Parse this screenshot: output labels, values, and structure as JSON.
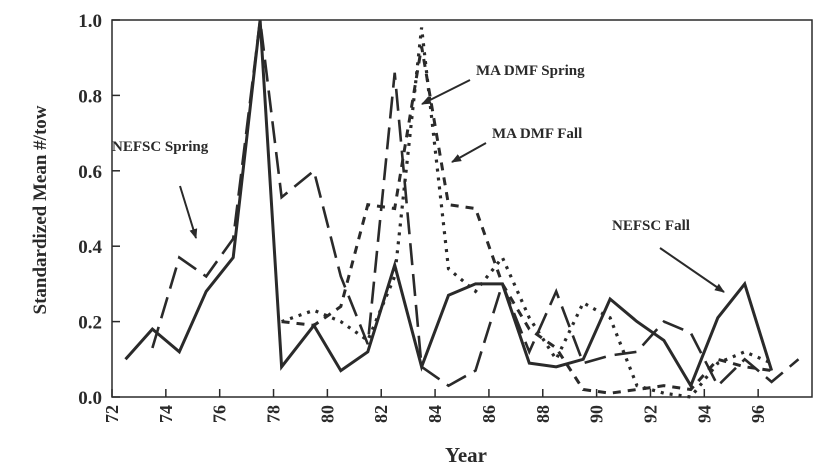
{
  "chart_data": {
    "type": "line",
    "title": "",
    "xlabel": "Year",
    "ylabel": "Standardized Mean #/tow",
    "xlim": [
      72,
      98
    ],
    "ylim": [
      0.0,
      1.0
    ],
    "x_ticks": [
      "72",
      "74",
      "76",
      "78",
      "80",
      "82",
      "84",
      "86",
      "88",
      "90",
      "92",
      "94",
      "96"
    ],
    "y_ticks": [
      "0.0",
      "0.2",
      "0.4",
      "0.6",
      "0.8",
      "1.0"
    ],
    "grid": false,
    "series": [
      {
        "name": "NEFSC Spring",
        "style": "solid",
        "x": [
          72.5,
          73.5,
          74,
          74.5,
          75.5,
          76.5,
          77.5,
          78.3,
          79.5,
          80.5,
          81.5,
          82.5,
          83.5,
          84.5,
          85.5,
          86.5,
          87.5,
          88.5,
          89.5,
          90.5,
          91.5,
          92.5,
          93.5,
          94.5,
          95.5,
          96.5
        ],
        "y": [
          0.1,
          0.18,
          0.15,
          0.12,
          0.28,
          0.37,
          1.0,
          0.08,
          0.19,
          0.07,
          0.12,
          0.35,
          0.08,
          0.27,
          0.3,
          0.3,
          0.09,
          0.08,
          0.1,
          0.26,
          0.2,
          0.15,
          0.03,
          0.21,
          0.3,
          0.07
        ]
      },
      {
        "name": "NEFSC Fall",
        "style": "long-dash",
        "x": [
          73.5,
          74.5,
          75.5,
          76.5,
          77.5,
          78.3,
          79.5,
          80.5,
          81.5,
          82.5,
          83.5,
          84.5,
          85.5,
          86.5,
          87.5,
          88.5,
          89.5,
          90.5,
          91.5,
          92.5,
          93.5,
          94.5,
          95.5,
          96.5,
          97.5
        ],
        "y": [
          0.13,
          0.37,
          0.32,
          0.42,
          1.0,
          0.53,
          0.6,
          0.32,
          0.14,
          0.86,
          0.08,
          0.03,
          0.07,
          0.3,
          0.12,
          0.28,
          0.09,
          0.11,
          0.12,
          0.2,
          0.17,
          0.03,
          0.1,
          0.04,
          0.1
        ]
      },
      {
        "name": "MA DMF Spring",
        "style": "dotted",
        "x": [
          78.3,
          79.5,
          80.5,
          81.5,
          82.5,
          83.5,
          84.5,
          85.5,
          86.5,
          87.5,
          88.5,
          89.5,
          90.5,
          91.5,
          92.5,
          93.5,
          94.5,
          95.5,
          96.5
        ],
        "y": [
          0.2,
          0.23,
          0.2,
          0.15,
          0.32,
          0.98,
          0.34,
          0.28,
          0.37,
          0.21,
          0.1,
          0.25,
          0.21,
          0.03,
          0.01,
          0.0,
          0.09,
          0.12,
          0.09
        ]
      },
      {
        "name": "MA DMF Fall",
        "style": "short-dash",
        "x": [
          78.3,
          79.5,
          80.5,
          81.5,
          82.5,
          83.5,
          84.5,
          85.5,
          86.5,
          87.5,
          88.5,
          89.5,
          90.5,
          91.5,
          92.5,
          93.5,
          94.5,
          95.5,
          96.5
        ],
        "y": [
          0.2,
          0.19,
          0.24,
          0.51,
          0.5,
          0.93,
          0.51,
          0.5,
          0.3,
          0.18,
          0.13,
          0.02,
          0.01,
          0.02,
          0.03,
          0.02,
          0.1,
          0.08,
          0.07
        ]
      }
    ],
    "annotations": [
      {
        "text": "NEFSC Spring"
      },
      {
        "text": "MA DMF Spring"
      },
      {
        "text": "MA DMF Fall"
      },
      {
        "text": "NEFSC Fall"
      }
    ]
  }
}
